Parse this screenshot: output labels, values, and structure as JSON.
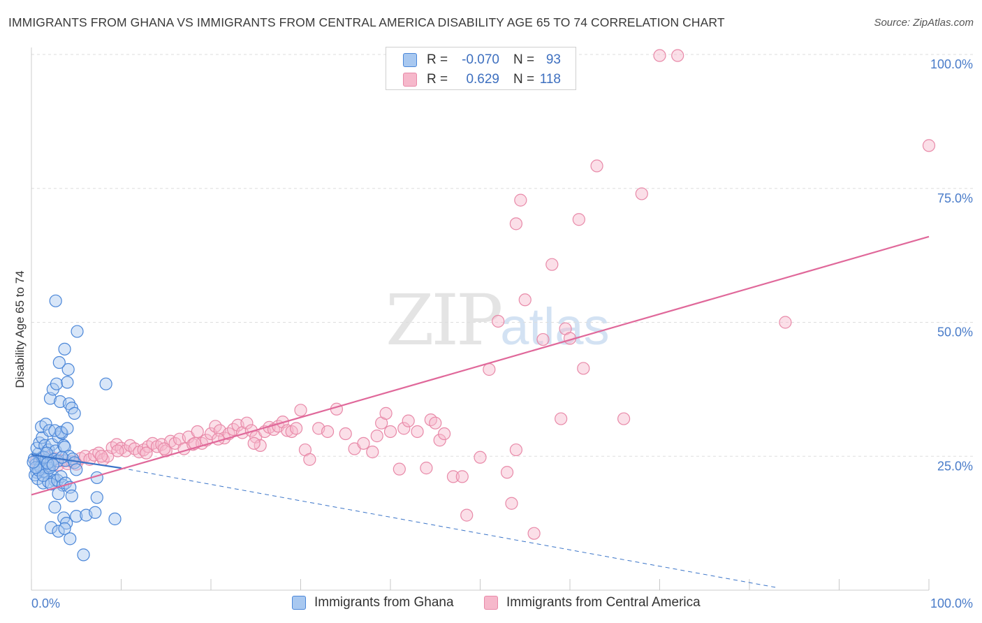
{
  "title": "IMMIGRANTS FROM GHANA VS IMMIGRANTS FROM CENTRAL AMERICA DISABILITY AGE 65 TO 74 CORRELATION CHART",
  "source": "Source: ZipAtlas.com",
  "watermark": {
    "zip": "ZIP",
    "atlas": "atlas"
  },
  "legend": {
    "series": [
      {
        "r_label": "R =",
        "r_value": "-0.070",
        "n_label": "N =",
        "n_value": "93"
      },
      {
        "r_label": "R =",
        "r_value": "0.629",
        "n_label": "N =",
        "n_value": "118"
      }
    ]
  },
  "bottom_legend": [
    "Immigrants from Ghana",
    "Immigrants from Central America"
  ],
  "colors": {
    "blue_fill": "#a8c8f0",
    "blue_stroke": "#4a86d8",
    "blue_line": "#3a74c8",
    "pink_fill": "#f6b8cb",
    "pink_stroke": "#e889a8",
    "pink_line": "#e0689a",
    "grid": "#dddddd",
    "tick_text": "#4a7cc9"
  },
  "chart_data": {
    "type": "scatter",
    "title": "IMMIGRANTS FROM GHANA VS IMMIGRANTS FROM CENTRAL AMERICA DISABILITY AGE 65 TO 74 CORRELATION CHART",
    "xlabel": "",
    "ylabel": "Disability Age 65 to 74",
    "xlim": [
      0,
      100
    ],
    "ylim": [
      0,
      100
    ],
    "x_tick_labels": [
      "0.0%",
      "100.0%"
    ],
    "y_ticks": [
      25,
      50,
      75,
      100
    ],
    "y_tick_labels": [
      "25.0%",
      "50.0%",
      "75.0%",
      "100.0%"
    ],
    "series": [
      {
        "name": "Immigrants from Ghana",
        "r": -0.07,
        "n": 93,
        "trend": {
          "x0": 0,
          "y0": 25.3,
          "x1": 10,
          "y1": 22.8,
          "dashed_to_x": 83,
          "dashed_to_y": 0.5
        },
        "points": [
          [
            0.3,
            24.5
          ],
          [
            0.5,
            23.5
          ],
          [
            0.6,
            22.0
          ],
          [
            0.8,
            25.5
          ],
          [
            0.9,
            24.0
          ],
          [
            1.0,
            23.0
          ],
          [
            1.1,
            22.5
          ],
          [
            1.2,
            24.8
          ],
          [
            1.3,
            23.8
          ],
          [
            0.4,
            21.5
          ],
          [
            0.7,
            20.8
          ],
          [
            1.4,
            22.2
          ],
          [
            1.5,
            23.5
          ],
          [
            1.6,
            24.2
          ],
          [
            1.7,
            21.8
          ],
          [
            1.8,
            22.8
          ],
          [
            2.0,
            23.2
          ],
          [
            2.2,
            24.0
          ],
          [
            2.4,
            21.2
          ],
          [
            2.6,
            20.5
          ],
          [
            0.6,
            26.5
          ],
          [
            0.9,
            27.5
          ],
          [
            1.2,
            28.5
          ],
          [
            1.5,
            27.0
          ],
          [
            1.9,
            26.2
          ],
          [
            2.3,
            27.2
          ],
          [
            2.7,
            26.0
          ],
          [
            3.0,
            28.6
          ],
          [
            3.4,
            29.3
          ],
          [
            3.6,
            27.0
          ],
          [
            1.1,
            30.5
          ],
          [
            1.6,
            31.0
          ],
          [
            2.0,
            29.8
          ],
          [
            2.6,
            29.8
          ],
          [
            3.3,
            29.5
          ],
          [
            3.7,
            26.7
          ],
          [
            4.0,
            30.2
          ],
          [
            3.8,
            24.2
          ],
          [
            4.2,
            25.0
          ],
          [
            4.6,
            24.5
          ],
          [
            4.8,
            23.8
          ],
          [
            5.0,
            22.5
          ],
          [
            2.1,
            35.8
          ],
          [
            2.4,
            37.5
          ],
          [
            2.8,
            38.5
          ],
          [
            3.2,
            35.2
          ],
          [
            4.2,
            34.8
          ],
          [
            4.5,
            34.0
          ],
          [
            4.8,
            33.0
          ],
          [
            4.0,
            38.8
          ],
          [
            4.1,
            41.2
          ],
          [
            3.1,
            42.5
          ],
          [
            3.7,
            45.0
          ],
          [
            5.1,
            48.3
          ],
          [
            2.7,
            54.0
          ],
          [
            8.3,
            38.5
          ],
          [
            1.3,
            20.0
          ],
          [
            1.9,
            20.2
          ],
          [
            2.2,
            19.8
          ],
          [
            2.9,
            20.5
          ],
          [
            3.3,
            21.2
          ],
          [
            3.5,
            19.6
          ],
          [
            3.8,
            20.0
          ],
          [
            4.3,
            19.2
          ],
          [
            4.5,
            17.6
          ],
          [
            3.0,
            18.0
          ],
          [
            2.6,
            15.5
          ],
          [
            3.6,
            13.5
          ],
          [
            3.9,
            12.5
          ],
          [
            2.2,
            11.7
          ],
          [
            3.0,
            11.0
          ],
          [
            3.7,
            11.5
          ],
          [
            4.3,
            9.6
          ],
          [
            5.0,
            13.8
          ],
          [
            6.1,
            14.0
          ],
          [
            7.1,
            14.5
          ],
          [
            7.3,
            17.3
          ],
          [
            7.3,
            21.0
          ],
          [
            9.3,
            13.3
          ],
          [
            5.8,
            6.6
          ],
          [
            1.0,
            23.0
          ],
          [
            1.4,
            24.8
          ],
          [
            1.7,
            25.6
          ],
          [
            2.5,
            24.4
          ],
          [
            0.8,
            22.4
          ],
          [
            1.3,
            21.4
          ],
          [
            2.0,
            22.8
          ],
          [
            2.9,
            24.1
          ],
          [
            0.5,
            22.9
          ],
          [
            1.8,
            23.7
          ],
          [
            2.4,
            23.4
          ],
          [
            3.4,
            24.8
          ],
          [
            0.2,
            23.9
          ]
        ]
      },
      {
        "name": "Immigrants from Central America",
        "r": 0.629,
        "n": 118,
        "trend": {
          "x0": 0,
          "y0": 17.8,
          "x1": 100,
          "y1": 66.0
        },
        "points": [
          [
            0.5,
            24.0
          ],
          [
            0.8,
            23.5
          ],
          [
            1.2,
            24.5
          ],
          [
            1.5,
            23.0
          ],
          [
            1.8,
            24.8
          ],
          [
            2.2,
            23.8
          ],
          [
            2.6,
            24.6
          ],
          [
            3.0,
            23.4
          ],
          [
            3.5,
            24.2
          ],
          [
            4.0,
            23.6
          ],
          [
            4.5,
            24.0
          ],
          [
            5.0,
            23.5
          ],
          [
            5.5,
            24.6
          ],
          [
            6.0,
            25.0
          ],
          [
            6.5,
            24.4
          ],
          [
            7.0,
            25.2
          ],
          [
            7.5,
            25.6
          ],
          [
            8.0,
            24.4
          ],
          [
            8.5,
            25.0
          ],
          [
            9.0,
            26.6
          ],
          [
            9.5,
            27.2
          ],
          [
            10.0,
            26.5
          ],
          [
            10.5,
            26.0
          ],
          [
            11.0,
            27.0
          ],
          [
            11.5,
            26.4
          ],
          [
            12.0,
            25.8
          ],
          [
            12.5,
            26.2
          ],
          [
            13.0,
            26.8
          ],
          [
            13.5,
            27.4
          ],
          [
            14.0,
            26.8
          ],
          [
            14.5,
            27.2
          ],
          [
            15.0,
            26.0
          ],
          [
            15.5,
            27.8
          ],
          [
            16.0,
            27.4
          ],
          [
            16.5,
            28.2
          ],
          [
            17.0,
            26.4
          ],
          [
            17.5,
            28.6
          ],
          [
            18.0,
            27.2
          ],
          [
            18.5,
            29.6
          ],
          [
            19.0,
            27.4
          ],
          [
            19.5,
            28.0
          ],
          [
            20.0,
            29.2
          ],
          [
            20.5,
            30.6
          ],
          [
            21.0,
            29.8
          ],
          [
            21.5,
            28.4
          ],
          [
            22.0,
            29.2
          ],
          [
            22.5,
            30.0
          ],
          [
            23.0,
            30.8
          ],
          [
            23.5,
            29.4
          ],
          [
            24.0,
            31.2
          ],
          [
            24.5,
            29.8
          ],
          [
            25.0,
            28.6
          ],
          [
            25.5,
            27.0
          ],
          [
            26.0,
            29.6
          ],
          [
            26.5,
            30.4
          ],
          [
            27.0,
            30.0
          ],
          [
            27.5,
            30.6
          ],
          [
            28.0,
            31.4
          ],
          [
            28.5,
            29.8
          ],
          [
            29.0,
            29.6
          ],
          [
            29.5,
            30.2
          ],
          [
            30.0,
            33.6
          ],
          [
            30.5,
            26.2
          ],
          [
            31.0,
            24.4
          ],
          [
            32.0,
            30.2
          ],
          [
            33.0,
            29.6
          ],
          [
            34.0,
            33.8
          ],
          [
            35.0,
            29.2
          ],
          [
            36.0,
            26.4
          ],
          [
            37.0,
            27.4
          ],
          [
            38.0,
            25.8
          ],
          [
            38.5,
            28.8
          ],
          [
            39.0,
            31.2
          ],
          [
            39.5,
            33.0
          ],
          [
            40.0,
            29.6
          ],
          [
            41.0,
            22.6
          ],
          [
            41.5,
            30.2
          ],
          [
            42.0,
            31.6
          ],
          [
            43.0,
            29.6
          ],
          [
            44.0,
            22.8
          ],
          [
            44.5,
            31.8
          ],
          [
            45.0,
            31.2
          ],
          [
            45.5,
            28.0
          ],
          [
            46.0,
            29.2
          ],
          [
            47.0,
            21.2
          ],
          [
            48.0,
            21.2
          ],
          [
            48.5,
            14.0
          ],
          [
            50.0,
            24.8
          ],
          [
            51.0,
            41.2
          ],
          [
            52.0,
            50.2
          ],
          [
            53.0,
            22.0
          ],
          [
            53.5,
            16.2
          ],
          [
            54.0,
            26.2
          ],
          [
            54.5,
            72.8
          ],
          [
            54.0,
            68.4
          ],
          [
            55.0,
            54.2
          ],
          [
            56.0,
            10.6
          ],
          [
            57.0,
            46.8
          ],
          [
            58.0,
            60.8
          ],
          [
            59.0,
            32.0
          ],
          [
            59.5,
            48.8
          ],
          [
            60.0,
            47.0
          ],
          [
            61.0,
            69.2
          ],
          [
            61.5,
            41.4
          ],
          [
            63.0,
            79.2
          ],
          [
            66.0,
            32.0
          ],
          [
            68.0,
            74.0
          ],
          [
            70.0,
            99.8
          ],
          [
            72.0,
            99.8
          ],
          [
            84.0,
            50.0
          ],
          [
            100.0,
            83.0
          ],
          [
            18.2,
            27.4
          ],
          [
            12.8,
            25.6
          ],
          [
            7.8,
            25.0
          ],
          [
            9.6,
            26.0
          ],
          [
            14.8,
            26.4
          ],
          [
            20.8,
            28.2
          ],
          [
            24.8,
            27.4
          ]
        ]
      }
    ]
  }
}
